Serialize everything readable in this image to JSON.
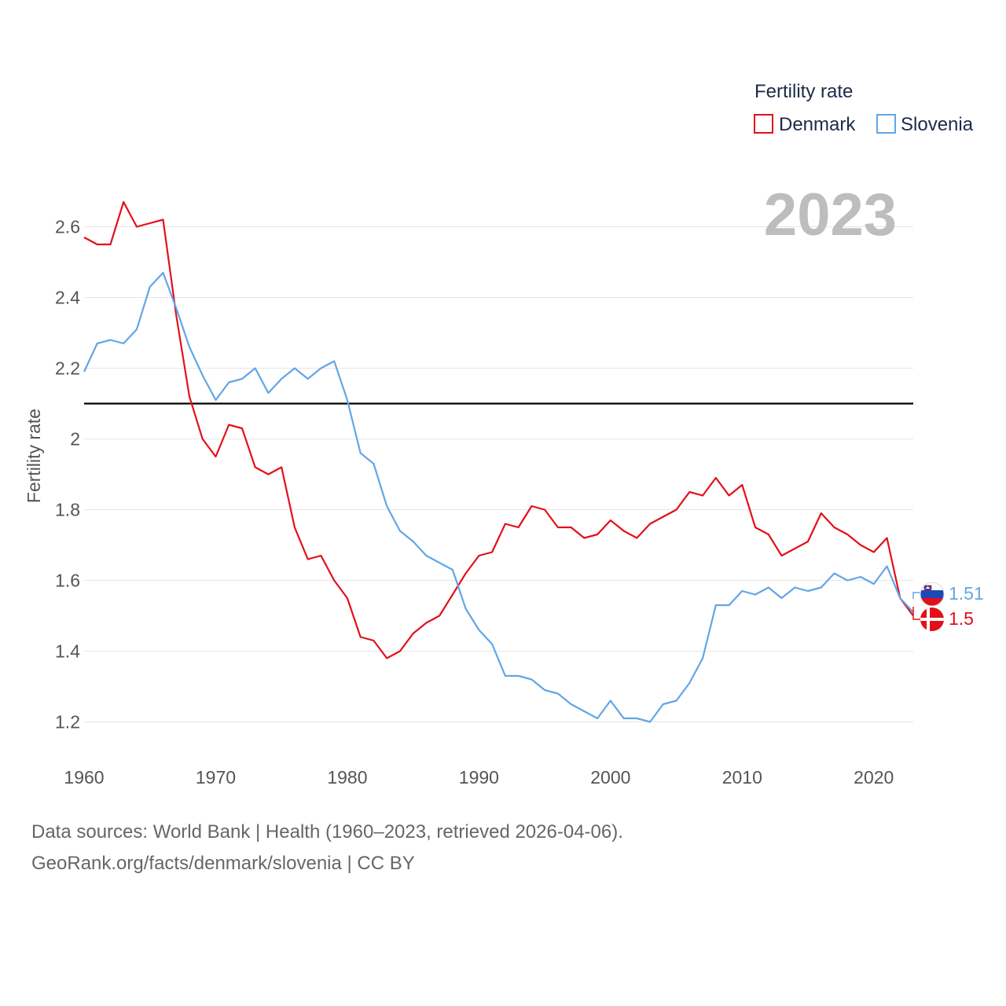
{
  "chart_data": {
    "type": "line",
    "legend_title": "Fertility rate",
    "ylabel": "Fertility rate",
    "year_display": "2023",
    "x": [
      1960,
      1961,
      1962,
      1963,
      1964,
      1965,
      1966,
      1967,
      1968,
      1969,
      1970,
      1971,
      1972,
      1973,
      1974,
      1975,
      1976,
      1977,
      1978,
      1979,
      1980,
      1981,
      1982,
      1983,
      1984,
      1985,
      1986,
      1987,
      1988,
      1989,
      1990,
      1991,
      1992,
      1993,
      1994,
      1995,
      1996,
      1997,
      1998,
      1999,
      2000,
      2001,
      2002,
      2003,
      2004,
      2005,
      2006,
      2007,
      2008,
      2009,
      2010,
      2011,
      2012,
      2013,
      2014,
      2015,
      2016,
      2017,
      2018,
      2019,
      2020,
      2021,
      2022,
      2023
    ],
    "xlim": [
      1960,
      2023
    ],
    "ylim": [
      1.07,
      2.77
    ],
    "x_ticks": [
      1960,
      1970,
      1980,
      1990,
      2000,
      2010,
      2020
    ],
    "y_ticks": [
      1.2,
      1.4,
      1.6,
      1.8,
      2,
      2.2,
      2.4,
      2.6
    ],
    "reference_line": 2.1,
    "series": [
      {
        "name": "Denmark",
        "color": "#e3101a",
        "end_label": "1.5",
        "flag": "denmark-flag",
        "values": [
          2.57,
          2.55,
          2.55,
          2.67,
          2.6,
          2.61,
          2.62,
          2.35,
          2.12,
          2.0,
          1.95,
          2.04,
          2.03,
          1.92,
          1.9,
          1.92,
          1.75,
          1.66,
          1.67,
          1.6,
          1.55,
          1.44,
          1.43,
          1.38,
          1.4,
          1.45,
          1.48,
          1.5,
          1.56,
          1.62,
          1.67,
          1.68,
          1.76,
          1.75,
          1.81,
          1.8,
          1.75,
          1.75,
          1.72,
          1.73,
          1.77,
          1.74,
          1.72,
          1.76,
          1.78,
          1.8,
          1.85,
          1.84,
          1.89,
          1.84,
          1.87,
          1.75,
          1.73,
          1.67,
          1.69,
          1.71,
          1.79,
          1.75,
          1.73,
          1.7,
          1.68,
          1.72,
          1.55,
          1.5
        ]
      },
      {
        "name": "Slovenia",
        "color": "#62a6e6",
        "end_label": "1.51",
        "flag": "slovenia-flag",
        "values": [
          2.19,
          2.27,
          2.28,
          2.27,
          2.31,
          2.43,
          2.47,
          2.37,
          2.26,
          2.18,
          2.11,
          2.16,
          2.17,
          2.2,
          2.13,
          2.17,
          2.2,
          2.17,
          2.2,
          2.22,
          2.11,
          1.96,
          1.93,
          1.81,
          1.74,
          1.71,
          1.67,
          1.65,
          1.63,
          1.52,
          1.46,
          1.42,
          1.33,
          1.33,
          1.32,
          1.29,
          1.28,
          1.25,
          1.23,
          1.21,
          1.26,
          1.21,
          1.21,
          1.2,
          1.25,
          1.26,
          1.31,
          1.38,
          1.53,
          1.53,
          1.57,
          1.56,
          1.58,
          1.55,
          1.58,
          1.57,
          1.58,
          1.62,
          1.6,
          1.61,
          1.59,
          1.64,
          1.55,
          1.51
        ]
      }
    ]
  },
  "footer": {
    "line1": "Data sources: World Bank | Health (1960–2023, retrieved 2026-04-06).",
    "line2": "GeoRank.org/facts/denmark/slovenia | CC BY"
  }
}
